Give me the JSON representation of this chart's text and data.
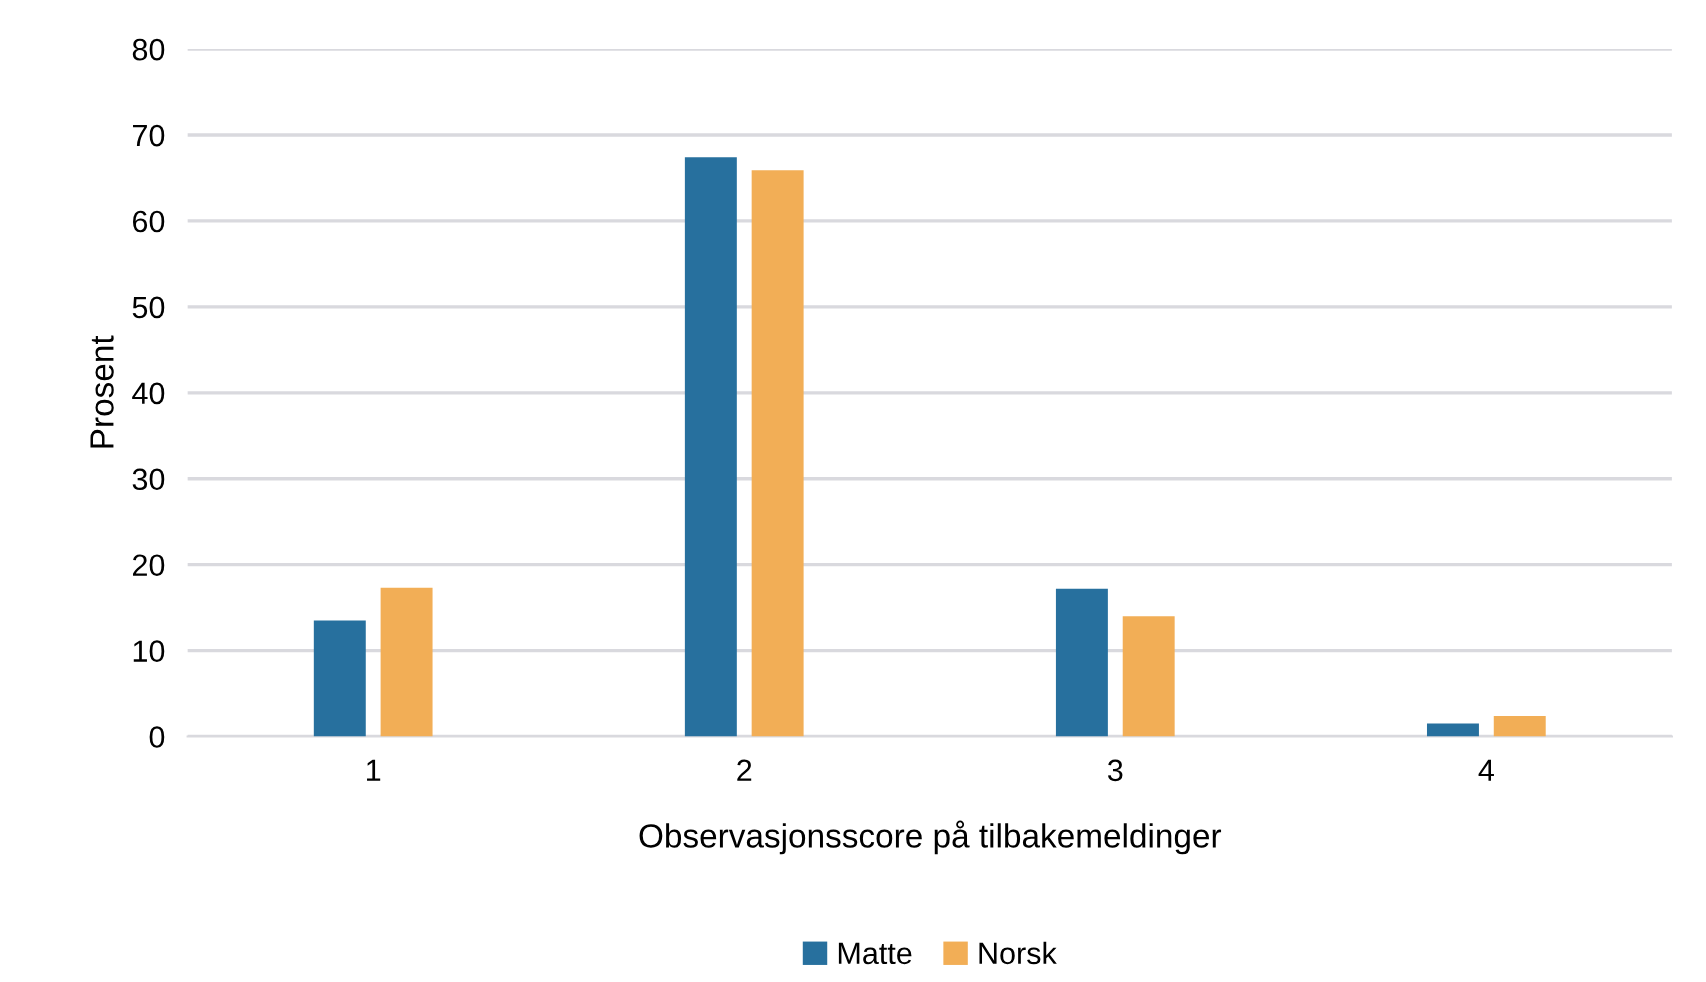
{
  "chart_data": {
    "type": "bar",
    "xlabel": "Observasjonsscore på tilbakemeldinger",
    "ylabel": "Prosent",
    "categories": [
      "1",
      "2",
      "3",
      "4"
    ],
    "series": [
      {
        "name": "Matte",
        "color": "#27709e",
        "values": [
          13.5,
          67.4,
          17.2,
          1.5
        ]
      },
      {
        "name": "Norsk",
        "color": "#f2ae56",
        "values": [
          17.3,
          65.9,
          14.0,
          2.4
        ]
      }
    ],
    "ylim": [
      0,
      80
    ],
    "yticks": [
      0,
      10,
      20,
      30,
      40,
      50,
      60,
      70,
      80
    ],
    "grid": "y",
    "legend": "bottom"
  }
}
